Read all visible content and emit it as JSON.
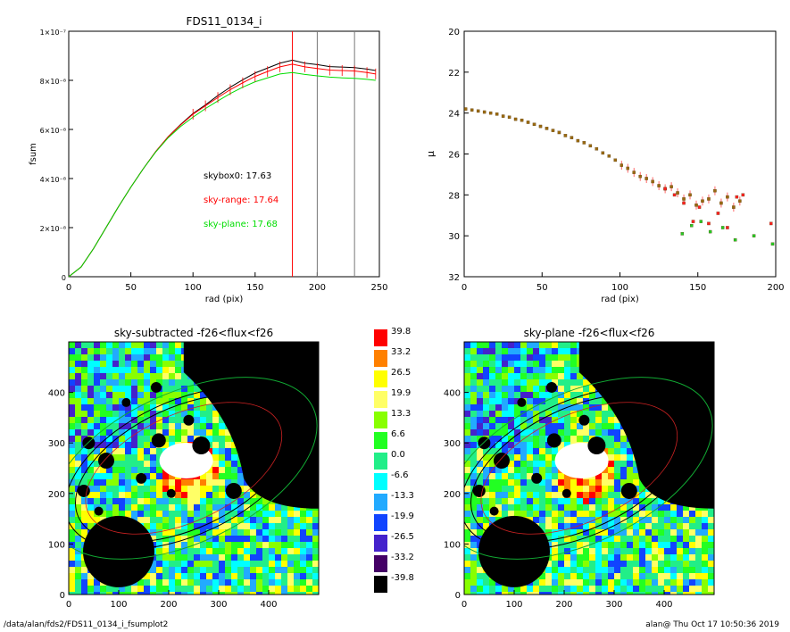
{
  "footer": {
    "path": "/data/alan/fds2/FDS11_0134_i_fsumplot2",
    "stamp": "alan@  Thu Oct 17 10:50:36 2019"
  },
  "chart_data": [
    {
      "type": "line",
      "title": "FDS11_0134_i",
      "xlabel": "rad (pix)",
      "ylabel": "fsum",
      "xlim": [
        0,
        250
      ],
      "ylim": [
        0,
        1e-07
      ],
      "xticks": [
        "0",
        "50",
        "100",
        "150",
        "200",
        "250"
      ],
      "yticks": [
        {
          "value": 0,
          "label": "0"
        },
        {
          "value": 2e-08,
          "label": "2×10⁻⁸"
        },
        {
          "value": 4e-08,
          "label": "4×10⁻⁸"
        },
        {
          "value": 6e-08,
          "label": "6×10⁻⁸"
        },
        {
          "value": 8e-08,
          "label": "8×10⁻⁸"
        },
        {
          "value": 1e-07,
          "label": "1×10⁻⁷"
        }
      ],
      "vlines": [
        {
          "x": 180,
          "color": "#ff0000"
        },
        {
          "x": 200,
          "color": "#777777"
        },
        {
          "x": 230,
          "color": "#777777"
        }
      ],
      "annotations": [
        {
          "text": "skybox0: 17.63",
          "color": "#000000"
        },
        {
          "text": "sky-range: 17.64",
          "color": "#ff0000"
        },
        {
          "text": "sky-plane: 17.68",
          "color": "#00dd00"
        }
      ],
      "series": [
        {
          "color": "#000000",
          "x": [
            0,
            10,
            20,
            30,
            40,
            50,
            60,
            70,
            80,
            90,
            100,
            110,
            120,
            130,
            140,
            150,
            160,
            170,
            180,
            190,
            200,
            210,
            220,
            230,
            240,
            247
          ],
          "y": [
            0,
            4e-09,
            1.15e-08,
            2e-08,
            2.85e-08,
            3.65e-08,
            4.4e-08,
            5.1e-08,
            5.7e-08,
            6.2e-08,
            6.65e-08,
            7e-08,
            7.38e-08,
            7.72e-08,
            8.02e-08,
            8.3e-08,
            8.5e-08,
            8.7e-08,
            8.82e-08,
            8.7e-08,
            8.64e-08,
            8.56e-08,
            8.54e-08,
            8.52e-08,
            8.46e-08,
            8.4e-08
          ]
        },
        {
          "color": "#ff0000",
          "x": [
            0,
            10,
            20,
            30,
            40,
            50,
            60,
            70,
            80,
            90,
            100,
            110,
            120,
            130,
            140,
            150,
            160,
            170,
            180,
            190,
            200,
            210,
            220,
            230,
            240,
            247
          ],
          "y": [
            0,
            4e-09,
            1.15e-08,
            2e-08,
            2.85e-08,
            3.65e-08,
            4.4e-08,
            5.1e-08,
            5.7e-08,
            6.18e-08,
            6.62e-08,
            6.96e-08,
            7.3e-08,
            7.62e-08,
            7.9e-08,
            8.16e-08,
            8.36e-08,
            8.55e-08,
            8.66e-08,
            8.55e-08,
            8.48e-08,
            8.42e-08,
            8.4e-08,
            8.38e-08,
            8.32e-08,
            8.26e-08
          ]
        },
        {
          "color": "#00dd00",
          "x": [
            0,
            10,
            20,
            30,
            40,
            50,
            60,
            70,
            80,
            90,
            100,
            110,
            120,
            130,
            140,
            150,
            160,
            170,
            180,
            190,
            200,
            210,
            220,
            230,
            240,
            247
          ],
          "y": [
            0,
            4e-09,
            1.15e-08,
            2e-08,
            2.85e-08,
            3.65e-08,
            4.4e-08,
            5.08e-08,
            5.66e-08,
            6.12e-08,
            6.5e-08,
            6.85e-08,
            7.16e-08,
            7.46e-08,
            7.72e-08,
            7.94e-08,
            8.1e-08,
            8.26e-08,
            8.32e-08,
            8.24e-08,
            8.18e-08,
            8.13e-08,
            8.1e-08,
            8.08e-08,
            8.04e-08,
            8e-08
          ]
        }
      ]
    },
    {
      "type": "scatter",
      "title": "",
      "xlabel": "rad (pix)",
      "ylabel": "μ",
      "xlim": [
        0,
        200
      ],
      "ylim": [
        32,
        20
      ],
      "xticks": [
        "0",
        "50",
        "100",
        "150",
        "200"
      ],
      "yticks": [
        "20",
        "22",
        "24",
        "26",
        "28",
        "30",
        "32"
      ],
      "series": [
        {
          "color": "#9a6a10",
          "x": [
            1,
            5,
            9,
            13,
            17,
            21,
            25,
            29,
            33,
            37,
            41,
            45,
            49,
            53,
            57,
            61,
            65,
            69,
            73,
            77,
            81,
            85,
            89,
            93,
            97,
            101,
            105,
            109,
            113,
            117,
            121,
            125,
            129,
            133,
            137,
            141,
            145,
            149,
            153,
            157,
            161,
            165,
            169,
            173,
            177
          ],
          "y": [
            23.8,
            23.85,
            23.9,
            23.95,
            24.0,
            24.05,
            24.15,
            24.2,
            24.3,
            24.35,
            24.45,
            24.55,
            24.65,
            24.75,
            24.85,
            24.95,
            25.1,
            25.2,
            25.35,
            25.45,
            25.6,
            25.75,
            25.95,
            26.1,
            26.3,
            26.55,
            26.7,
            26.9,
            27.1,
            27.2,
            27.35,
            27.55,
            27.7,
            27.6,
            27.9,
            28.2,
            28.0,
            28.5,
            28.3,
            28.2,
            27.8,
            28.4,
            28.1,
            28.6,
            28.3
          ]
        },
        {
          "color": "#ff2020",
          "x": [
            129,
            135,
            141,
            147,
            151,
            157,
            163,
            169,
            175,
            179,
            197
          ],
          "y": [
            27.7,
            28.0,
            28.4,
            29.3,
            28.6,
            29.4,
            28.9,
            29.6,
            28.1,
            28.0,
            29.4
          ]
        },
        {
          "color": "#22cc22",
          "x": [
            140,
            146,
            152,
            158,
            166,
            174,
            186,
            198
          ],
          "y": [
            29.9,
            29.5,
            29.3,
            29.8,
            29.6,
            30.2,
            30.0,
            30.4
          ]
        }
      ]
    },
    {
      "type": "heatmap",
      "title": "sky-subtracted -f26<flux<f26",
      "xlim": [
        0,
        500
      ],
      "ylim": [
        0,
        500
      ],
      "xticks": [
        "0",
        "100",
        "200",
        "300",
        "400"
      ],
      "yticks": [
        "0",
        "100",
        "200",
        "300",
        "400"
      ]
    },
    {
      "type": "heatmap",
      "title": "sky-plane -f26<flux<f26",
      "xlim": [
        0,
        500
      ],
      "ylim": [
        0,
        500
      ],
      "xticks": [
        "0",
        "100",
        "200",
        "300",
        "400"
      ],
      "yticks": [
        "0",
        "100",
        "200",
        "300",
        "400"
      ]
    }
  ],
  "colorbar": {
    "labels": [
      "39.8",
      "33.2",
      "26.5",
      "19.9",
      "13.3",
      "6.6",
      "0.0",
      "-6.6",
      "-13.3",
      "-19.9",
      "-26.5",
      "-33.2",
      "-39.8"
    ],
    "colors": [
      "#ff0000",
      "#ff8000",
      "#ffff00",
      "#ffff66",
      "#88ff00",
      "#22ff22",
      "#22ee88",
      "#00ffff",
      "#22aaff",
      "#1144ff",
      "#4422cc",
      "#440066",
      "#000000"
    ]
  }
}
